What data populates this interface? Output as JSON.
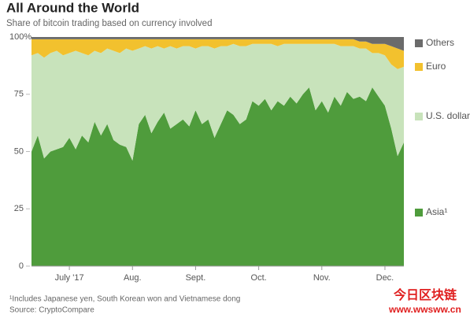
{
  "chart_data": {
    "type": "stacked_area",
    "title": "All Around the World",
    "subtitle": "Share of bitcoin trading based on currency involved",
    "categories": [
      null,
      null,
      null,
      null,
      null,
      null,
      "July '17",
      null,
      null,
      null,
      null,
      null,
      null,
      null,
      null,
      null,
      "Aug.",
      null,
      null,
      null,
      null,
      null,
      null,
      null,
      null,
      null,
      "Sept.",
      null,
      null,
      null,
      null,
      null,
      null,
      null,
      null,
      null,
      "Oct.",
      null,
      null,
      null,
      null,
      null,
      null,
      null,
      null,
      null,
      "Nov.",
      null,
      null,
      null,
      null,
      null,
      null,
      null,
      null,
      null,
      "Dec.",
      null,
      null,
      null
    ],
    "series": [
      {
        "name": "Asia¹",
        "color": "#4f9c3c",
        "values": [
          50,
          57,
          47,
          50,
          51,
          52,
          56,
          51,
          57,
          54,
          63,
          57,
          62,
          55,
          53,
          52,
          46,
          62,
          66,
          58,
          63,
          67,
          60,
          62,
          64,
          61,
          68,
          62,
          64,
          56,
          62,
          68,
          66,
          62,
          64,
          72,
          70,
          73,
          68,
          72,
          70,
          74,
          71,
          75,
          78,
          68,
          72,
          67,
          74,
          70,
          76,
          73,
          74,
          72,
          78,
          74,
          70,
          60,
          48,
          54
        ]
      },
      {
        "name": "U.S. dollar",
        "color": "#c8e3bb",
        "values": [
          42,
          36,
          44,
          43,
          43,
          40,
          37,
          43,
          36,
          38,
          31,
          36,
          33,
          39,
          40,
          43,
          48,
          33,
          30,
          37,
          33,
          28,
          36,
          33,
          32,
          35,
          27,
          34,
          32,
          39,
          34,
          28,
          31,
          34,
          32,
          25,
          27,
          24,
          29,
          24,
          27,
          23,
          26,
          22,
          19,
          29,
          25,
          30,
          23,
          26,
          20,
          23,
          21,
          23,
          15,
          19,
          22,
          28,
          38,
          33
        ]
      },
      {
        "name": "Euro",
        "color": "#f2c12e",
        "values": [
          7,
          6,
          8,
          6,
          5,
          7,
          6,
          5,
          6,
          7,
          5,
          6,
          4,
          5,
          6,
          4,
          5,
          4,
          3,
          4,
          3,
          4,
          3,
          4,
          3,
          3,
          4,
          3,
          3,
          4,
          3,
          3,
          2,
          3,
          3,
          2,
          2,
          2,
          2,
          3,
          2,
          2,
          2,
          2,
          2,
          2,
          2,
          2,
          2,
          3,
          3,
          3,
          3,
          3,
          4,
          4,
          5,
          8,
          9,
          7
        ]
      },
      {
        "name": "Others",
        "color": "#6b6b6b",
        "values": [
          1,
          1,
          1,
          1,
          1,
          1,
          1,
          1,
          1,
          1,
          1,
          1,
          1,
          1,
          1,
          1,
          1,
          1,
          1,
          1,
          1,
          1,
          1,
          1,
          1,
          1,
          1,
          1,
          1,
          1,
          1,
          1,
          1,
          1,
          1,
          1,
          1,
          1,
          1,
          1,
          1,
          1,
          1,
          1,
          1,
          1,
          1,
          1,
          1,
          1,
          1,
          1,
          2,
          2,
          3,
          3,
          3,
          4,
          5,
          6
        ]
      }
    ],
    "ylim": [
      0,
      100
    ],
    "yticks": [
      0,
      25,
      50,
      75,
      {
        "value": 100,
        "label": "100%"
      }
    ],
    "footnote": "¹Includes Japanese yen, South Korean won and Vietnamese dong",
    "source": "Source: CryptoCompare"
  },
  "watermark": {
    "text": "今日区块链",
    "url": "www.wwsww.cn"
  }
}
